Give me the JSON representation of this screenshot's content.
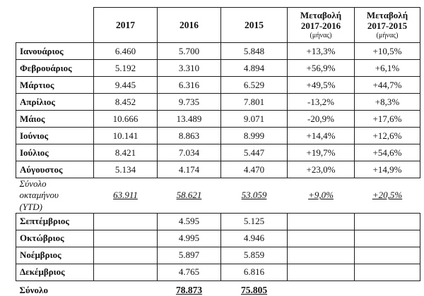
{
  "table": {
    "year_headers": [
      "2017",
      "2016",
      "2015"
    ],
    "change_headers": [
      {
        "line1": "Μεταβολή",
        "line2": "2017-2016",
        "unit": "(μήνας)"
      },
      {
        "line1": "Μεταβολή",
        "line2": "2017-2015",
        "unit": "(μήνας)"
      }
    ],
    "rows_jan_aug": [
      {
        "month": "Ιανουάριος",
        "v2017": "6.460",
        "v2016": "5.700",
        "v2015": "5.848",
        "chg_2017_2016": "+13,3%",
        "chg_2017_2015": "+10,5%"
      },
      {
        "month": "Φεβρουάριος",
        "v2017": "5.192",
        "v2016": "3.310",
        "v2015": "4.894",
        "chg_2017_2016": "+56,9%",
        "chg_2017_2015": "+6,1%"
      },
      {
        "month": "Μάρτιος",
        "v2017": "9.445",
        "v2016": "6.316",
        "v2015": "6.529",
        "chg_2017_2016": "+49,5%",
        "chg_2017_2015": "+44,7%"
      },
      {
        "month": "Απρίλιος",
        "v2017": "8.452",
        "v2016": "9.735",
        "v2015": "7.801",
        "chg_2017_2016": "-13,2%",
        "chg_2017_2015": "+8,3%"
      },
      {
        "month": "Μάιος",
        "v2017": "10.666",
        "v2016": "13.489",
        "v2015": "9.071",
        "chg_2017_2016": "-20,9%",
        "chg_2017_2015": "+17,6%"
      },
      {
        "month": "Ιούνιος",
        "v2017": "10.141",
        "v2016": "8.863",
        "v2015": "8.999",
        "chg_2017_2016": "+14,4%",
        "chg_2017_2015": "+12,6%"
      },
      {
        "month": "Ιούλιος",
        "v2017": "8.421",
        "v2016": "7.034",
        "v2015": "5.447",
        "chg_2017_2016": "+19,7%",
        "chg_2017_2015": "+54,6%"
      },
      {
        "month": "Αύγουστος",
        "v2017": "5.134",
        "v2016": "4.174",
        "v2015": "4.470",
        "chg_2017_2016": "+23,0%",
        "chg_2017_2015": "+14,9%"
      }
    ],
    "ytd_row": {
      "label": "Σύνολο οκταμήνου (YTD)",
      "v2017": "63.911",
      "v2016": "58.621",
      "v2015": "53.059",
      "chg_2017_2016": "+9,0%",
      "chg_2017_2015": "+20,5%"
    },
    "rows_sep_dec": [
      {
        "month": "Σεπτέμβριος",
        "v2016": "4.595",
        "v2015": "5.125"
      },
      {
        "month": "Οκτώβριος",
        "v2016": "4.995",
        "v2015": "4.946"
      },
      {
        "month": "Νοέμβριος",
        "v2016": "5.897",
        "v2015": "5.859"
      },
      {
        "month": "Δεκέμβριος",
        "v2016": "4.765",
        "v2015": "6.816"
      }
    ],
    "total_row": {
      "label": "Σύνολο",
      "v2016": "78.873",
      "v2015": "75.805"
    }
  }
}
